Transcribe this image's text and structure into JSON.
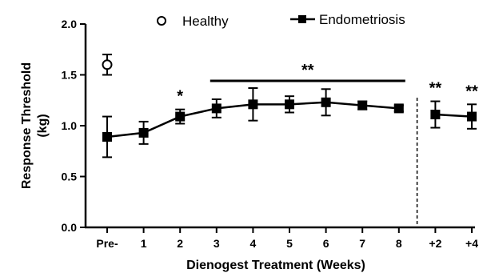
{
  "chart_data": {
    "type": "line",
    "xlabel": "Dienogest Treatment (Weeks)",
    "ylabel": "Response Threshold (kg)",
    "ylabel_lines": [
      "Response Threshold",
      "(kg)"
    ],
    "ylim": [
      0,
      2.0
    ],
    "yticks": [
      "0.0",
      "0.5",
      "1.0",
      "1.5",
      "2.0"
    ],
    "categories": [
      "Pre-",
      "1",
      "2",
      "3",
      "4",
      "5",
      "6",
      "7",
      "8",
      "+2",
      "+4"
    ],
    "legend": {
      "position": "top",
      "entries": [
        "Healthy",
        "Endometriosis"
      ]
    },
    "series": [
      {
        "name": "Healthy",
        "marker": "open-circle",
        "color": "#000000",
        "points": [
          {
            "x": "Pre-",
            "y": 1.6,
            "err": 0.1
          }
        ]
      },
      {
        "name": "Endometriosis",
        "marker": "filled-square",
        "color": "#000000",
        "connect_until": "8",
        "points": [
          {
            "x": "Pre-",
            "y": 0.89,
            "err": 0.2
          },
          {
            "x": "1",
            "y": 0.93,
            "err": 0.11
          },
          {
            "x": "2",
            "y": 1.09,
            "err": 0.07
          },
          {
            "x": "3",
            "y": 1.17,
            "err": 0.09
          },
          {
            "x": "4",
            "y": 1.21,
            "err": 0.16
          },
          {
            "x": "5",
            "y": 1.21,
            "err": 0.08
          },
          {
            "x": "6",
            "y": 1.23,
            "err": 0.13
          },
          {
            "x": "7",
            "y": 1.2,
            "err": 0.04
          },
          {
            "x": "8",
            "y": 1.17,
            "err": 0.03
          },
          {
            "x": "+2",
            "y": 1.11,
            "err": 0.13
          },
          {
            "x": "+4",
            "y": 1.09,
            "err": 0.12
          }
        ]
      }
    ],
    "annotations": [
      {
        "text": "*",
        "x": "2"
      },
      {
        "text": "**",
        "bar_from": "3",
        "bar_to": "8"
      },
      {
        "text": "**",
        "x": "+2"
      },
      {
        "text": "**",
        "x": "+4"
      }
    ],
    "divider": {
      "style": "dashed",
      "between": [
        "8",
        "+2"
      ]
    }
  }
}
